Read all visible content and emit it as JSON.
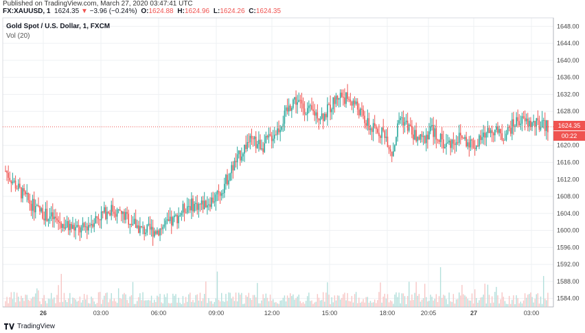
{
  "header": {
    "published": "Published on TradingView.com, March 27, 2020 03:47:41 UTC",
    "symbol": "FX:XAUUSD, 1",
    "last": "1624.35",
    "change_arrow": "▼",
    "change": "−3.96 (−0.24%)",
    "o_label": "O:",
    "o": "1624.88",
    "h_label": "H:",
    "h": "1624.96",
    "l_label": "L:",
    "l": "1624.26",
    "c_label": "C:",
    "c": "1624.35"
  },
  "legend": {
    "title": "Gold Spot / U.S. Dollar, 1, FXCM",
    "vol": "Vol (20)"
  },
  "footer": {
    "brand": "TradingView"
  },
  "price_tag": {
    "value": "1624.35",
    "countdown": "00:22"
  },
  "colors": {
    "up": "#26a69a",
    "down": "#ef5350",
    "vol_up": "#b2dfdb",
    "vol_down": "#f7c5c4",
    "grid": "#eef0f3",
    "axis_text": "#444444"
  },
  "chart_data": {
    "type": "candlestick",
    "title": "Gold Spot / U.S. Dollar, 1, FXCM",
    "ylim": [
      1582,
      1650
    ],
    "y_ticks": [
      1648,
      1644,
      1640,
      1636,
      1632,
      1628,
      1620,
      1616,
      1612,
      1608,
      1604,
      1600,
      1596,
      1592,
      1588,
      1584
    ],
    "x_tick_labels": [
      "26",
      "03:00",
      "06:00",
      "09:00",
      "12:00",
      "15:00",
      "18:00",
      "20:05",
      "27",
      "03:00"
    ],
    "grid": true,
    "last_price": 1624.35,
    "price_path": [
      [
        0,
        1614
      ],
      [
        4,
        1609
      ],
      [
        8,
        1605
      ],
      [
        12,
        1603
      ],
      [
        16,
        1601
      ],
      [
        20,
        1600
      ],
      [
        24,
        1603
      ],
      [
        28,
        1605
      ],
      [
        32,
        1603
      ],
      [
        36,
        1600
      ],
      [
        40,
        1600
      ],
      [
        44,
        1602
      ],
      [
        48,
        1606
      ],
      [
        52,
        1606
      ],
      [
        56,
        1608
      ],
      [
        60,
        1615
      ],
      [
        64,
        1621
      ],
      [
        68,
        1620
      ],
      [
        72,
        1624
      ],
      [
        76,
        1631
      ],
      [
        80,
        1628
      ],
      [
        84,
        1627
      ],
      [
        88,
        1632
      ],
      [
        92,
        1630
      ],
      [
        96,
        1624
      ],
      [
        100,
        1623
      ],
      [
        102,
        1618
      ],
      [
        104,
        1627
      ],
      [
        108,
        1622
      ],
      [
        110,
        1621
      ],
      [
        112,
        1624
      ],
      [
        116,
        1620
      ],
      [
        120,
        1622
      ],
      [
        124,
        1620
      ],
      [
        128,
        1624
      ],
      [
        131,
        1622
      ],
      [
        135,
        1626
      ],
      [
        139,
        1625
      ],
      [
        143,
        1624.35
      ]
    ]
  }
}
